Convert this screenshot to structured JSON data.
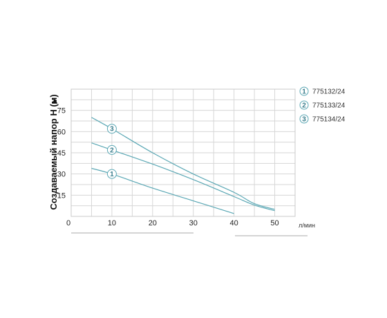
{
  "chart_data": {
    "type": "line",
    "ylabel": "Создаваемый напор H (м)",
    "xlabel": "л/мин",
    "xlim": [
      0,
      55
    ],
    "ylim": [
      0,
      90
    ],
    "x_ticks": [
      0,
      10,
      20,
      30,
      40,
      50
    ],
    "y_ticks": [
      15,
      30,
      45,
      60,
      75
    ],
    "grid": true,
    "legend_position": "right",
    "line_color": "#5aa7b4",
    "series": [
      {
        "name": "775132/24",
        "marker": "1",
        "marker_at": [
          10,
          30
        ],
        "points": [
          [
            5,
            34
          ],
          [
            10,
            30
          ],
          [
            20,
            20
          ],
          [
            30,
            11
          ],
          [
            40,
            2
          ]
        ]
      },
      {
        "name": "775133/24",
        "marker": "2",
        "marker_at": [
          10,
          47
        ],
        "points": [
          [
            5,
            52
          ],
          [
            10,
            47
          ],
          [
            20,
            37
          ],
          [
            30,
            26
          ],
          [
            40,
            14
          ],
          [
            45,
            8
          ],
          [
            50,
            4
          ]
        ]
      },
      {
        "name": "775134/24",
        "marker": "3",
        "marker_at": [
          10,
          62
        ],
        "points": [
          [
            5,
            70
          ],
          [
            10,
            62
          ],
          [
            20,
            45
          ],
          [
            30,
            30
          ],
          [
            40,
            17
          ],
          [
            45,
            9
          ],
          [
            50,
            5
          ]
        ]
      }
    ]
  }
}
